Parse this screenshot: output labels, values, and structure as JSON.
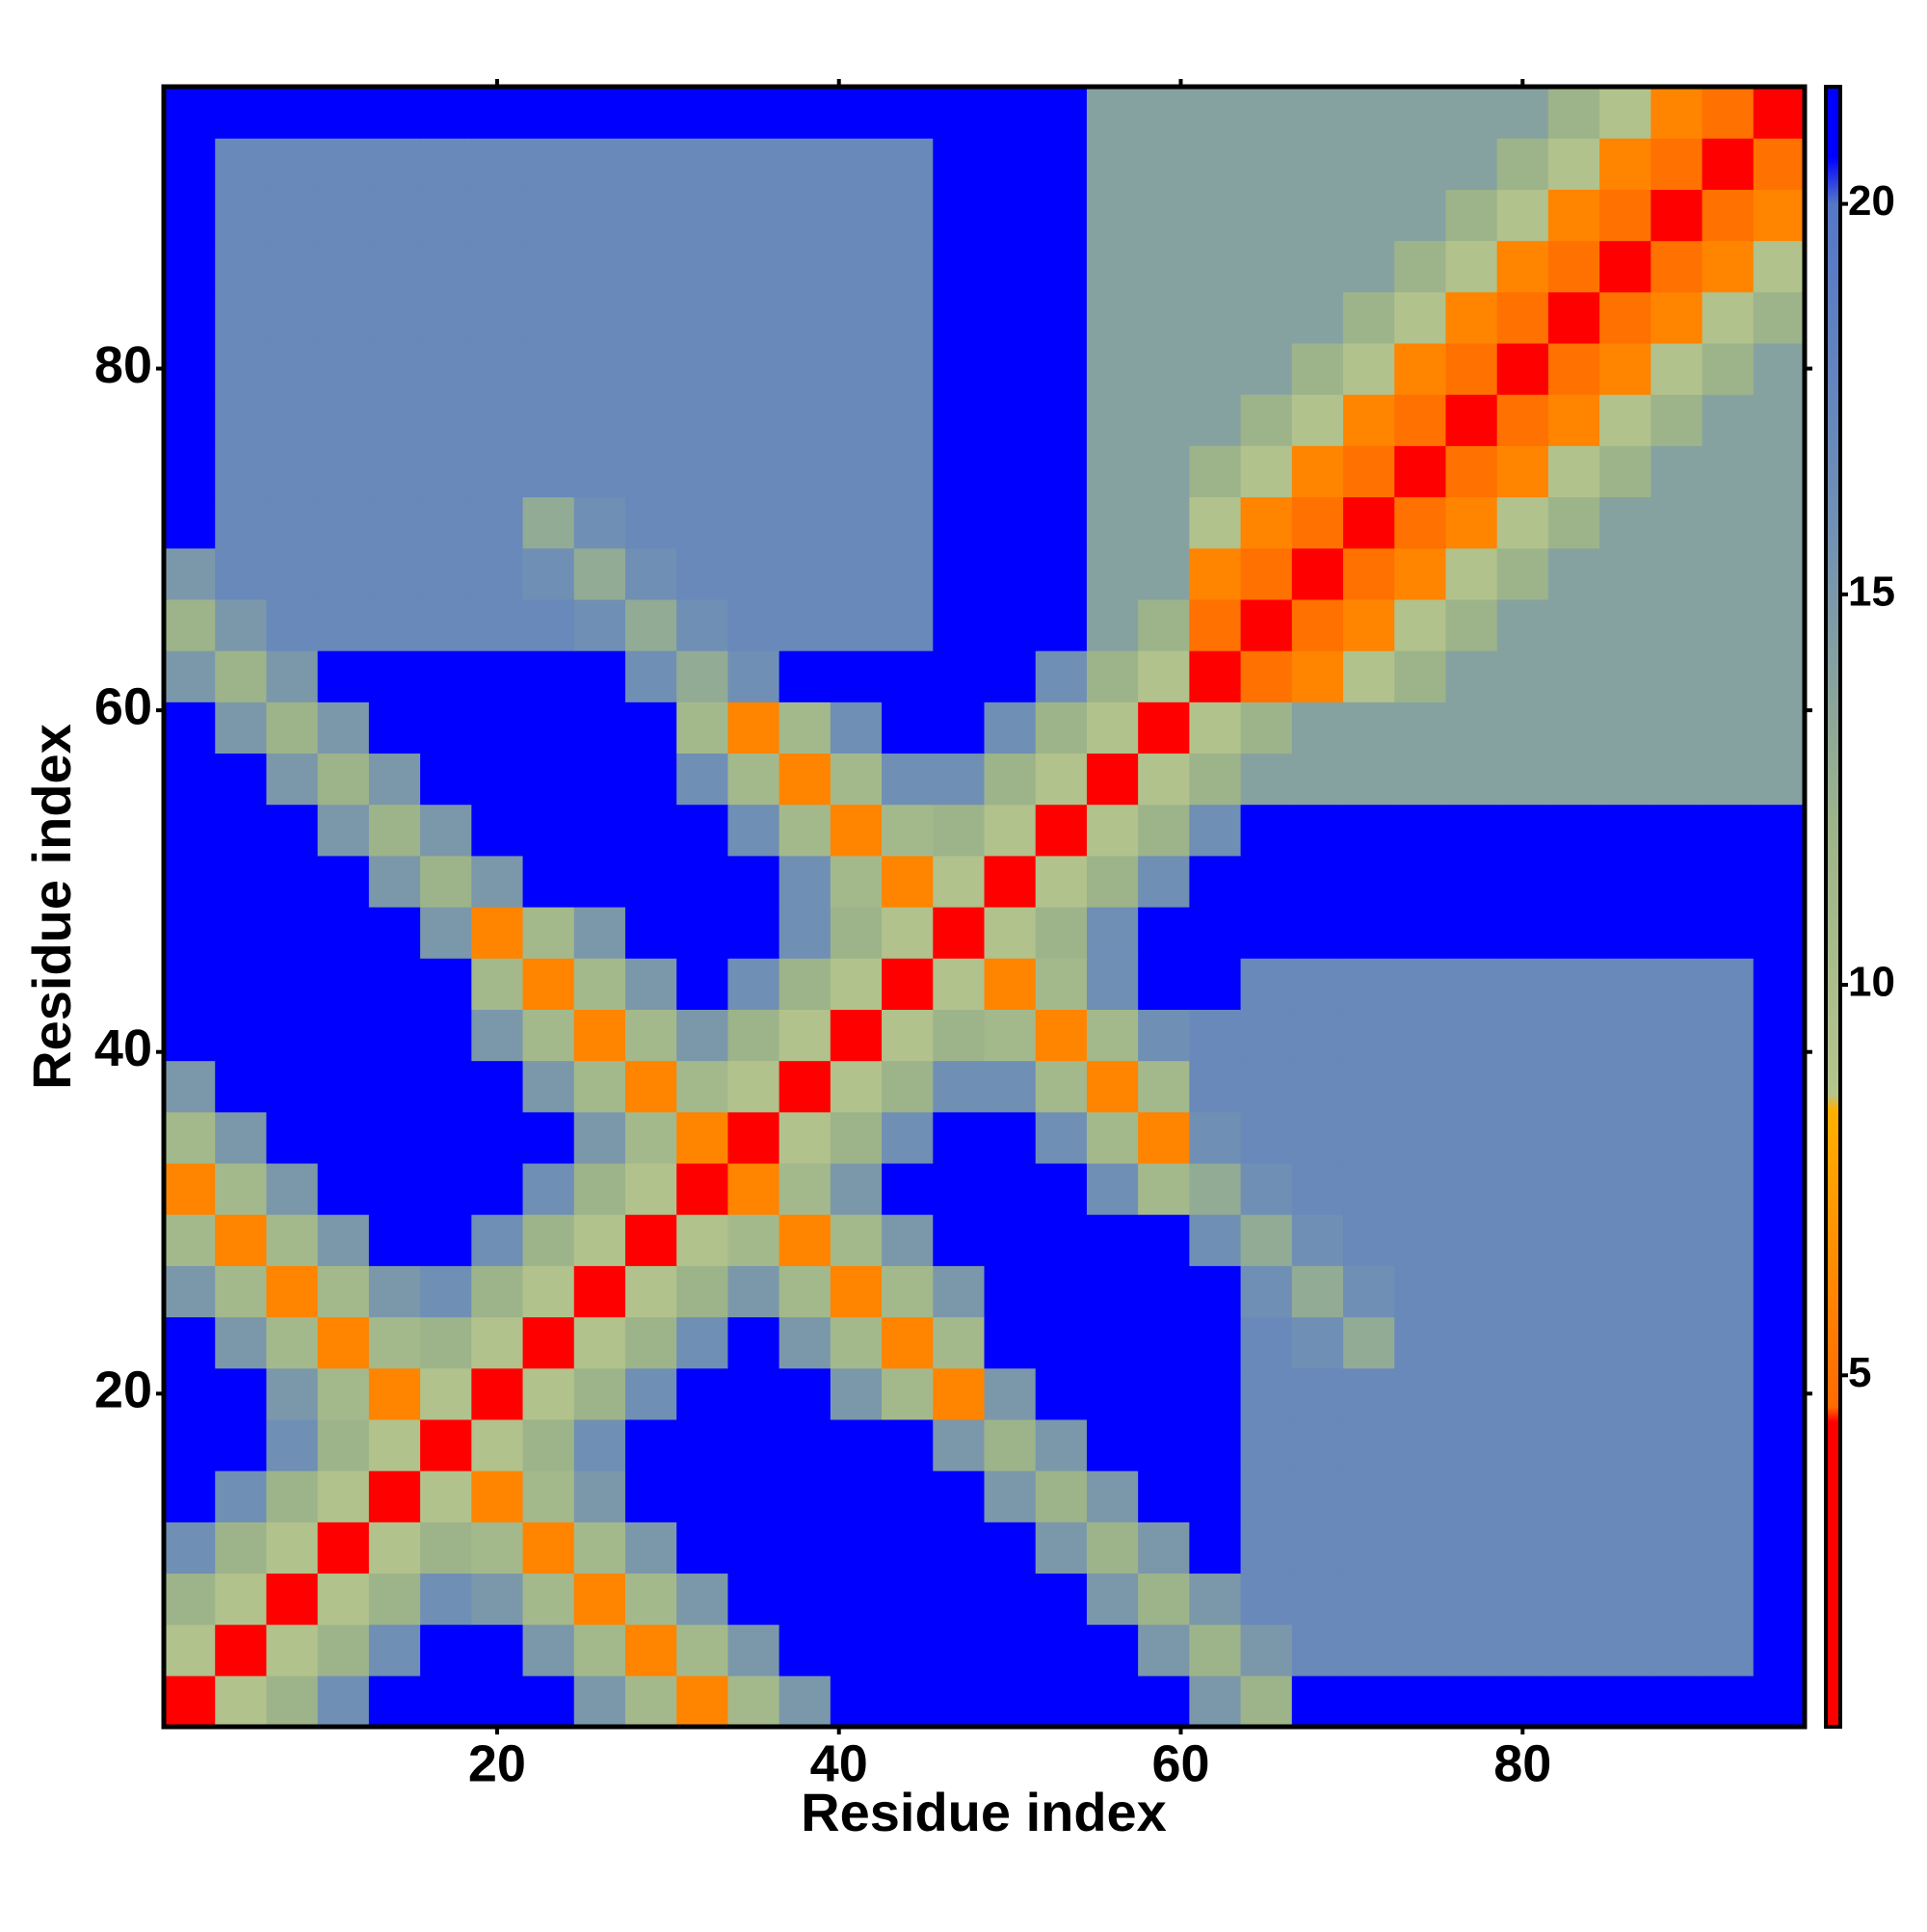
{
  "chart_data": {
    "type": "heatmap",
    "xlabel": "Residue index",
    "ylabel": "Residue index",
    "x": [
      2,
      5,
      8,
      11,
      14,
      17,
      20,
      23,
      26,
      29,
      32,
      35,
      38,
      41,
      44,
      47,
      50,
      53,
      56,
      59,
      62,
      65,
      68,
      71,
      74,
      77,
      80,
      83,
      86,
      89,
      92,
      95
    ],
    "y": [
      2,
      5,
      8,
      11,
      14,
      17,
      20,
      23,
      26,
      29,
      32,
      35,
      38,
      41,
      44,
      47,
      50,
      53,
      56,
      59,
      62,
      65,
      68,
      71,
      74,
      77,
      80,
      83,
      86,
      89,
      92,
      95
    ],
    "xlim": [
      0.5,
      96.5
    ],
    "ylim": [
      0.5,
      96.5
    ],
    "xticks": [
      20,
      40,
      60,
      80
    ],
    "yticks": [
      20,
      40,
      60,
      80
    ],
    "zlim": [
      0.5,
      21.5
    ],
    "zticks": [
      5,
      10,
      15,
      20
    ],
    "colorscale": [
      [
        0.5,
        "#ff0000"
      ],
      [
        4.4,
        "#ff0000"
      ],
      [
        4.6,
        "#ff6a00"
      ],
      [
        8.4,
        "#ffb000"
      ],
      [
        8.6,
        "#b4c48c"
      ],
      [
        12,
        "#9db48a"
      ],
      [
        16,
        "#6f8fb5"
      ],
      [
        20,
        "#5577c8"
      ],
      [
        20.6,
        "#0000ff"
      ],
      [
        21.5,
        "#0000ff"
      ]
    ],
    "z": [
      [
        2,
        9,
        12,
        16,
        21,
        21,
        21,
        21,
        15,
        11,
        6,
        11,
        15,
        21,
        21,
        21,
        21,
        21,
        21,
        21,
        15,
        12,
        21,
        21,
        21,
        21,
        21,
        21,
        21,
        21,
        21,
        21
      ],
      [
        9,
        2,
        9,
        12,
        16,
        21,
        21,
        15,
        11,
        6,
        11,
        15,
        21,
        21,
        21,
        21,
        21,
        21,
        21,
        15,
        12,
        15,
        17,
        17,
        17,
        17,
        17,
        17,
        17,
        17,
        17,
        21
      ],
      [
        12,
        9,
        2,
        9,
        12,
        16,
        15,
        11,
        6,
        11,
        15,
        21,
        21,
        21,
        21,
        21,
        21,
        21,
        15,
        12,
        15,
        17,
        17,
        17,
        17,
        17,
        17,
        17,
        17,
        17,
        17,
        21
      ],
      [
        16,
        12,
        9,
        2,
        9,
        12,
        11,
        6,
        11,
        15,
        21,
        21,
        21,
        21,
        21,
        21,
        21,
        15,
        12,
        15,
        21,
        17,
        17,
        17,
        17,
        17,
        17,
        17,
        17,
        17,
        17,
        21
      ],
      [
        21,
        16,
        12,
        9,
        2,
        9,
        6,
        11,
        15,
        21,
        21,
        21,
        21,
        21,
        21,
        21,
        15,
        12,
        15,
        21,
        21,
        17,
        17,
        17,
        17,
        17,
        17,
        17,
        17,
        17,
        17,
        21
      ],
      [
        21,
        21,
        16,
        12,
        9,
        2,
        9,
        12,
        16,
        21,
        21,
        21,
        21,
        21,
        21,
        15,
        12,
        15,
        21,
        21,
        21,
        17,
        17,
        17,
        17,
        17,
        17,
        17,
        17,
        17,
        17,
        21
      ],
      [
        21,
        21,
        15,
        11,
        6,
        9,
        2,
        9,
        12,
        16,
        21,
        21,
        21,
        15,
        11,
        6,
        15,
        21,
        21,
        21,
        21,
        17,
        17,
        17,
        17,
        17,
        17,
        17,
        17,
        17,
        17,
        21
      ],
      [
        21,
        15,
        11,
        6,
        11,
        12,
        9,
        2,
        9,
        12,
        16,
        21,
        15,
        11,
        6,
        11,
        21,
        21,
        21,
        21,
        21,
        17,
        16,
        13,
        17,
        17,
        17,
        17,
        17,
        17,
        17,
        21
      ],
      [
        15,
        11,
        6,
        11,
        15,
        16,
        12,
        9,
        2,
        9,
        12,
        15,
        11,
        6,
        11,
        15,
        21,
        21,
        21,
        21,
        21,
        16,
        13,
        16,
        17,
        17,
        17,
        17,
        17,
        17,
        17,
        21
      ],
      [
        11,
        6,
        11,
        15,
        21,
        21,
        16,
        12,
        9,
        2,
        9,
        11,
        6,
        11,
        15,
        21,
        21,
        21,
        21,
        21,
        16,
        13,
        16,
        17,
        17,
        17,
        17,
        17,
        17,
        17,
        17,
        21
      ],
      [
        6,
        11,
        15,
        21,
        21,
        21,
        21,
        16,
        12,
        9,
        2,
        6,
        11,
        15,
        21,
        21,
        21,
        21,
        16,
        11,
        13,
        16,
        17,
        17,
        17,
        17,
        17,
        17,
        17,
        17,
        17,
        21
      ],
      [
        11,
        15,
        21,
        21,
        21,
        21,
        21,
        21,
        15,
        11,
        6,
        2,
        9,
        12,
        16,
        21,
        21,
        16,
        11,
        6,
        16,
        17,
        17,
        17,
        17,
        17,
        17,
        17,
        17,
        17,
        17,
        21
      ],
      [
        15,
        21,
        21,
        21,
        21,
        21,
        21,
        15,
        11,
        6,
        11,
        9,
        2,
        9,
        12,
        16,
        16,
        11,
        6,
        11,
        17,
        17,
        17,
        17,
        17,
        17,
        17,
        17,
        17,
        17,
        17,
        21
      ],
      [
        21,
        21,
        21,
        21,
        21,
        21,
        15,
        11,
        6,
        11,
        15,
        12,
        9,
        2,
        9,
        12,
        11,
        6,
        11,
        16,
        17,
        17,
        17,
        17,
        17,
        17,
        17,
        17,
        17,
        17,
        17,
        21
      ],
      [
        21,
        21,
        21,
        21,
        21,
        21,
        11,
        6,
        11,
        15,
        21,
        16,
        12,
        9,
        2,
        9,
        6,
        11,
        16,
        21,
        21,
        17,
        17,
        17,
        17,
        17,
        17,
        17,
        17,
        17,
        17,
        21
      ],
      [
        21,
        21,
        21,
        21,
        21,
        15,
        6,
        11,
        15,
        21,
        21,
        21,
        16,
        12,
        9,
        2,
        9,
        12,
        16,
        21,
        21,
        21,
        21,
        21,
        21,
        21,
        21,
        21,
        21,
        21,
        21,
        21
      ],
      [
        21,
        21,
        21,
        21,
        15,
        12,
        15,
        21,
        21,
        21,
        21,
        21,
        16,
        11,
        6,
        9,
        2,
        9,
        12,
        16,
        21,
        21,
        21,
        21,
        21,
        21,
        21,
        21,
        21,
        21,
        21,
        21
      ],
      [
        21,
        21,
        21,
        15,
        12,
        15,
        21,
        21,
        21,
        21,
        21,
        16,
        11,
        6,
        11,
        12,
        9,
        2,
        9,
        12,
        16,
        21,
        21,
        21,
        21,
        21,
        21,
        21,
        21,
        21,
        21,
        21
      ],
      [
        21,
        21,
        15,
        12,
        15,
        21,
        21,
        21,
        21,
        21,
        16,
        11,
        6,
        11,
        16,
        16,
        12,
        9,
        2,
        9,
        12,
        14,
        14,
        14,
        14,
        14,
        14,
        14,
        14,
        14,
        14,
        14
      ],
      [
        21,
        15,
        12,
        15,
        21,
        21,
        21,
        21,
        21,
        21,
        11,
        6,
        11,
        16,
        21,
        21,
        16,
        12,
        9,
        2,
        9,
        12,
        14,
        14,
        14,
        14,
        14,
        14,
        14,
        14,
        14,
        14
      ],
      [
        15,
        12,
        15,
        21,
        21,
        21,
        21,
        21,
        21,
        16,
        13,
        16,
        21,
        21,
        21,
        21,
        21,
        16,
        12,
        9,
        2,
        5,
        6,
        9,
        12,
        14,
        14,
        14,
        14,
        14,
        14,
        14
      ],
      [
        12,
        15,
        17,
        17,
        17,
        17,
        17,
        17,
        16,
        13,
        16,
        17,
        17,
        17,
        17,
        21,
        21,
        21,
        14,
        12,
        5,
        2,
        5,
        6,
        9,
        12,
        14,
        14,
        14,
        14,
        14,
        14
      ],
      [
        15,
        17,
        17,
        17,
        17,
        17,
        17,
        16,
        13,
        16,
        17,
        17,
        17,
        17,
        17,
        21,
        21,
        21,
        14,
        14,
        6,
        5,
        2,
        5,
        6,
        9,
        12,
        14,
        14,
        14,
        14,
        14
      ],
      [
        21,
        17,
        17,
        17,
        17,
        17,
        17,
        13,
        16,
        17,
        17,
        17,
        17,
        17,
        17,
        21,
        21,
        21,
        14,
        14,
        9,
        6,
        5,
        2,
        5,
        6,
        9,
        12,
        14,
        14,
        14,
        14
      ],
      [
        21,
        17,
        17,
        17,
        17,
        17,
        17,
        17,
        17,
        17,
        17,
        17,
        17,
        17,
        17,
        21,
        21,
        21,
        14,
        14,
        12,
        9,
        6,
        5,
        2,
        5,
        6,
        9,
        12,
        14,
        14,
        14
      ],
      [
        21,
        17,
        17,
        17,
        17,
        17,
        17,
        17,
        17,
        17,
        17,
        17,
        17,
        17,
        17,
        21,
        21,
        21,
        14,
        14,
        14,
        12,
        9,
        6,
        5,
        2,
        5,
        6,
        9,
        12,
        14,
        14
      ],
      [
        21,
        17,
        17,
        17,
        17,
        17,
        17,
        17,
        17,
        17,
        17,
        17,
        17,
        17,
        17,
        21,
        21,
        21,
        14,
        14,
        14,
        14,
        12,
        9,
        6,
        5,
        2,
        5,
        6,
        9,
        12,
        14
      ],
      [
        21,
        17,
        17,
        17,
        17,
        17,
        17,
        17,
        17,
        17,
        17,
        17,
        17,
        17,
        17,
        21,
        21,
        21,
        14,
        14,
        14,
        14,
        14,
        12,
        9,
        6,
        5,
        2,
        5,
        6,
        9,
        12
      ],
      [
        21,
        17,
        17,
        17,
        17,
        17,
        17,
        17,
        17,
        17,
        17,
        17,
        17,
        17,
        17,
        21,
        21,
        21,
        14,
        14,
        14,
        14,
        14,
        14,
        12,
        9,
        6,
        5,
        2,
        5,
        6,
        9
      ],
      [
        21,
        17,
        17,
        17,
        17,
        17,
        17,
        17,
        17,
        17,
        17,
        17,
        17,
        17,
        17,
        21,
        21,
        21,
        14,
        14,
        14,
        14,
        14,
        14,
        14,
        12,
        9,
        6,
        5,
        2,
        5,
        6
      ],
      [
        21,
        17,
        17,
        17,
        17,
        17,
        17,
        17,
        17,
        17,
        17,
        17,
        17,
        17,
        17,
        21,
        21,
        21,
        14,
        14,
        14,
        14,
        14,
        14,
        14,
        14,
        12,
        9,
        6,
        5,
        2,
        5
      ],
      [
        21,
        21,
        21,
        21,
        21,
        21,
        21,
        21,
        21,
        21,
        21,
        21,
        21,
        21,
        21,
        21,
        21,
        21,
        14,
        14,
        14,
        14,
        14,
        14,
        14,
        14,
        14,
        12,
        9,
        6,
        5,
        2
      ]
    ]
  }
}
